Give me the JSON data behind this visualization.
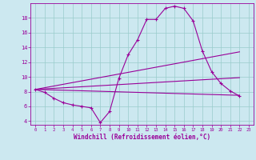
{
  "background_color": "#cce8f0",
  "line_color": "#990099",
  "grid_color": "#99cccc",
  "xlabel": "Windchill (Refroidissement éolien,°C)",
  "xlim": [
    -0.5,
    23.5
  ],
  "ylim": [
    3.5,
    20.0
  ],
  "yticks": [
    4,
    6,
    8,
    10,
    12,
    14,
    16,
    18
  ],
  "xticks": [
    0,
    1,
    2,
    3,
    4,
    5,
    6,
    7,
    8,
    9,
    10,
    11,
    12,
    13,
    14,
    15,
    16,
    17,
    18,
    19,
    20,
    21,
    22,
    23
  ],
  "main_curve": {
    "x": [
      0,
      1,
      2,
      3,
      4,
      5,
      6,
      7,
      8,
      9,
      10,
      11,
      12,
      13,
      14,
      15,
      16,
      17,
      18,
      19,
      20,
      21,
      22
    ],
    "y": [
      8.3,
      7.9,
      7.1,
      6.5,
      6.2,
      6.0,
      5.8,
      3.8,
      5.3,
      9.8,
      13.0,
      15.0,
      17.8,
      17.8,
      19.3,
      19.6,
      19.3,
      17.6,
      13.5,
      10.7,
      9.1,
      8.1,
      7.4
    ]
  },
  "straight_lines": [
    {
      "x": [
        0,
        22
      ],
      "y": [
        8.3,
        7.5
      ]
    },
    {
      "x": [
        0,
        22
      ],
      "y": [
        8.3,
        7.5
      ]
    },
    {
      "x": [
        0,
        22
      ],
      "y": [
        8.3,
        7.5
      ]
    }
  ],
  "line1": {
    "x": [
      0,
      22
    ],
    "y": [
      8.3,
      7.5
    ]
  },
  "line2": {
    "x": [
      0,
      22
    ],
    "y": [
      8.3,
      9.9
    ]
  },
  "line3": {
    "x": [
      0,
      22
    ],
    "y": [
      8.3,
      13.4
    ]
  }
}
